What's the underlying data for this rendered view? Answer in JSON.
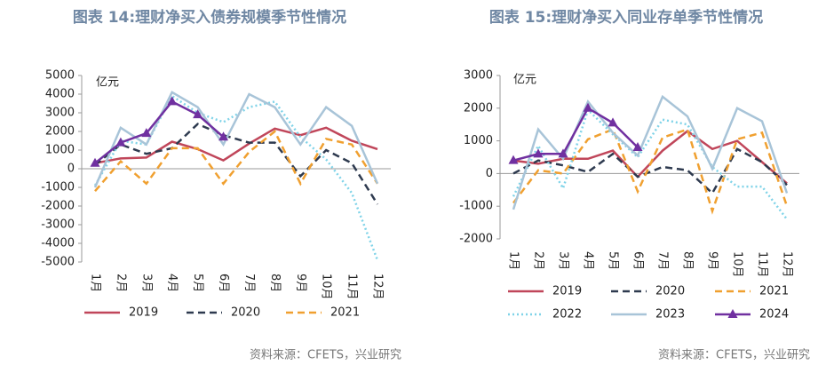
{
  "chart_data": [
    {
      "type": "line",
      "title": "图表 14:理财净买入债券规模季节性情况",
      "unit_label": "亿元",
      "source": "资料来源：CFETS，兴业研究",
      "categories": [
        "1月",
        "2月",
        "3月",
        "4月",
        "5月",
        "6月",
        "7月",
        "8月",
        "9月",
        "10月",
        "11月",
        "12月"
      ],
      "ylim": [
        -5000,
        5000
      ],
      "yticks": [
        -5000,
        -4000,
        -3000,
        -2000,
        -1000,
        0,
        1000,
        2000,
        3000,
        4000,
        5000
      ],
      "series": [
        {
          "name": "2019",
          "color": "#c0465a",
          "dash": "solid",
          "values": [
            300,
            550,
            600,
            1450,
            1050,
            450,
            1350,
            2150,
            1800,
            2200,
            1500,
            1050
          ]
        },
        {
          "name": "2020",
          "color": "#2e3a4f",
          "dash": "dashed",
          "values": [
            200,
            1300,
            800,
            1100,
            2400,
            1800,
            1400,
            1400,
            -400,
            1000,
            300,
            -1900
          ]
        },
        {
          "name": "2021",
          "color": "#f0a030",
          "dash": "dashed",
          "values": [
            -1200,
            400,
            -800,
            1100,
            1100,
            -800,
            900,
            2000,
            -800,
            1600,
            1300,
            -800
          ]
        },
        {
          "color": "#7fd3e8",
          "dash": "dotted",
          "values": [
            -900,
            1500,
            1300,
            3900,
            3000,
            2500,
            3300,
            3600,
            1700,
            500,
            -1300,
            -4900
          ]
        },
        {
          "color": "#a8c4d8",
          "dash": "solid",
          "values": [
            -1000,
            2200,
            1300,
            4100,
            3300,
            1300,
            4000,
            3300,
            1300,
            3300,
            2300,
            -800
          ]
        },
        {
          "color": "#7030a0",
          "dash": "solid",
          "marker": "triangle",
          "values": [
            300,
            1400,
            1900,
            3600,
            2900,
            1700,
            null,
            null,
            null,
            null,
            null,
            null
          ]
        }
      ]
    },
    {
      "type": "line",
      "title": "图表 15:理财净买入同业存单季节性情况",
      "unit_label": "亿元",
      "source": "资料来源：CFETS，兴业研究",
      "categories": [
        "1月",
        "2月",
        "3月",
        "4月",
        "5月",
        "6月",
        "7月",
        "8月",
        "9月",
        "10月",
        "11月",
        "12月"
      ],
      "ylim": [
        -2000,
        3000
      ],
      "yticks": [
        -2000,
        -1000,
        0,
        1000,
        2000,
        3000
      ],
      "series": [
        {
          "name": "2019",
          "color": "#c0465a",
          "dash": "solid",
          "values": [
            400,
            300,
            450,
            450,
            700,
            -100,
            700,
            1300,
            750,
            1000,
            350,
            -300
          ]
        },
        {
          "name": "2020",
          "color": "#2e3a4f",
          "dash": "dashed",
          "values": [
            0,
            400,
            250,
            50,
            600,
            -100,
            200,
            100,
            -600,
            750,
            350,
            -350
          ]
        },
        {
          "name": "2021",
          "color": "#f0a030",
          "dash": "dashed",
          "values": [
            -900,
            100,
            0,
            1050,
            1350,
            -550,
            1100,
            1350,
            -1150,
            1050,
            1250,
            -1000
          ]
        },
        {
          "name": "2022",
          "color": "#7fd3e8",
          "dash": "dotted",
          "values": [
            -700,
            850,
            -450,
            1950,
            1200,
            500,
            1650,
            1500,
            200,
            -400,
            -400,
            -1400
          ]
        },
        {
          "name": "2023",
          "color": "#a8c4d8",
          "dash": "solid",
          "values": [
            -1100,
            1350,
            450,
            2200,
            1250,
            550,
            2350,
            1750,
            150,
            2000,
            1600,
            -600
          ]
        },
        {
          "name": "2024",
          "color": "#7030a0",
          "dash": "solid",
          "marker": "triangle",
          "values": [
            400,
            600,
            600,
            2000,
            1550,
            800,
            null,
            null,
            null,
            null,
            null,
            null
          ]
        }
      ]
    }
  ]
}
